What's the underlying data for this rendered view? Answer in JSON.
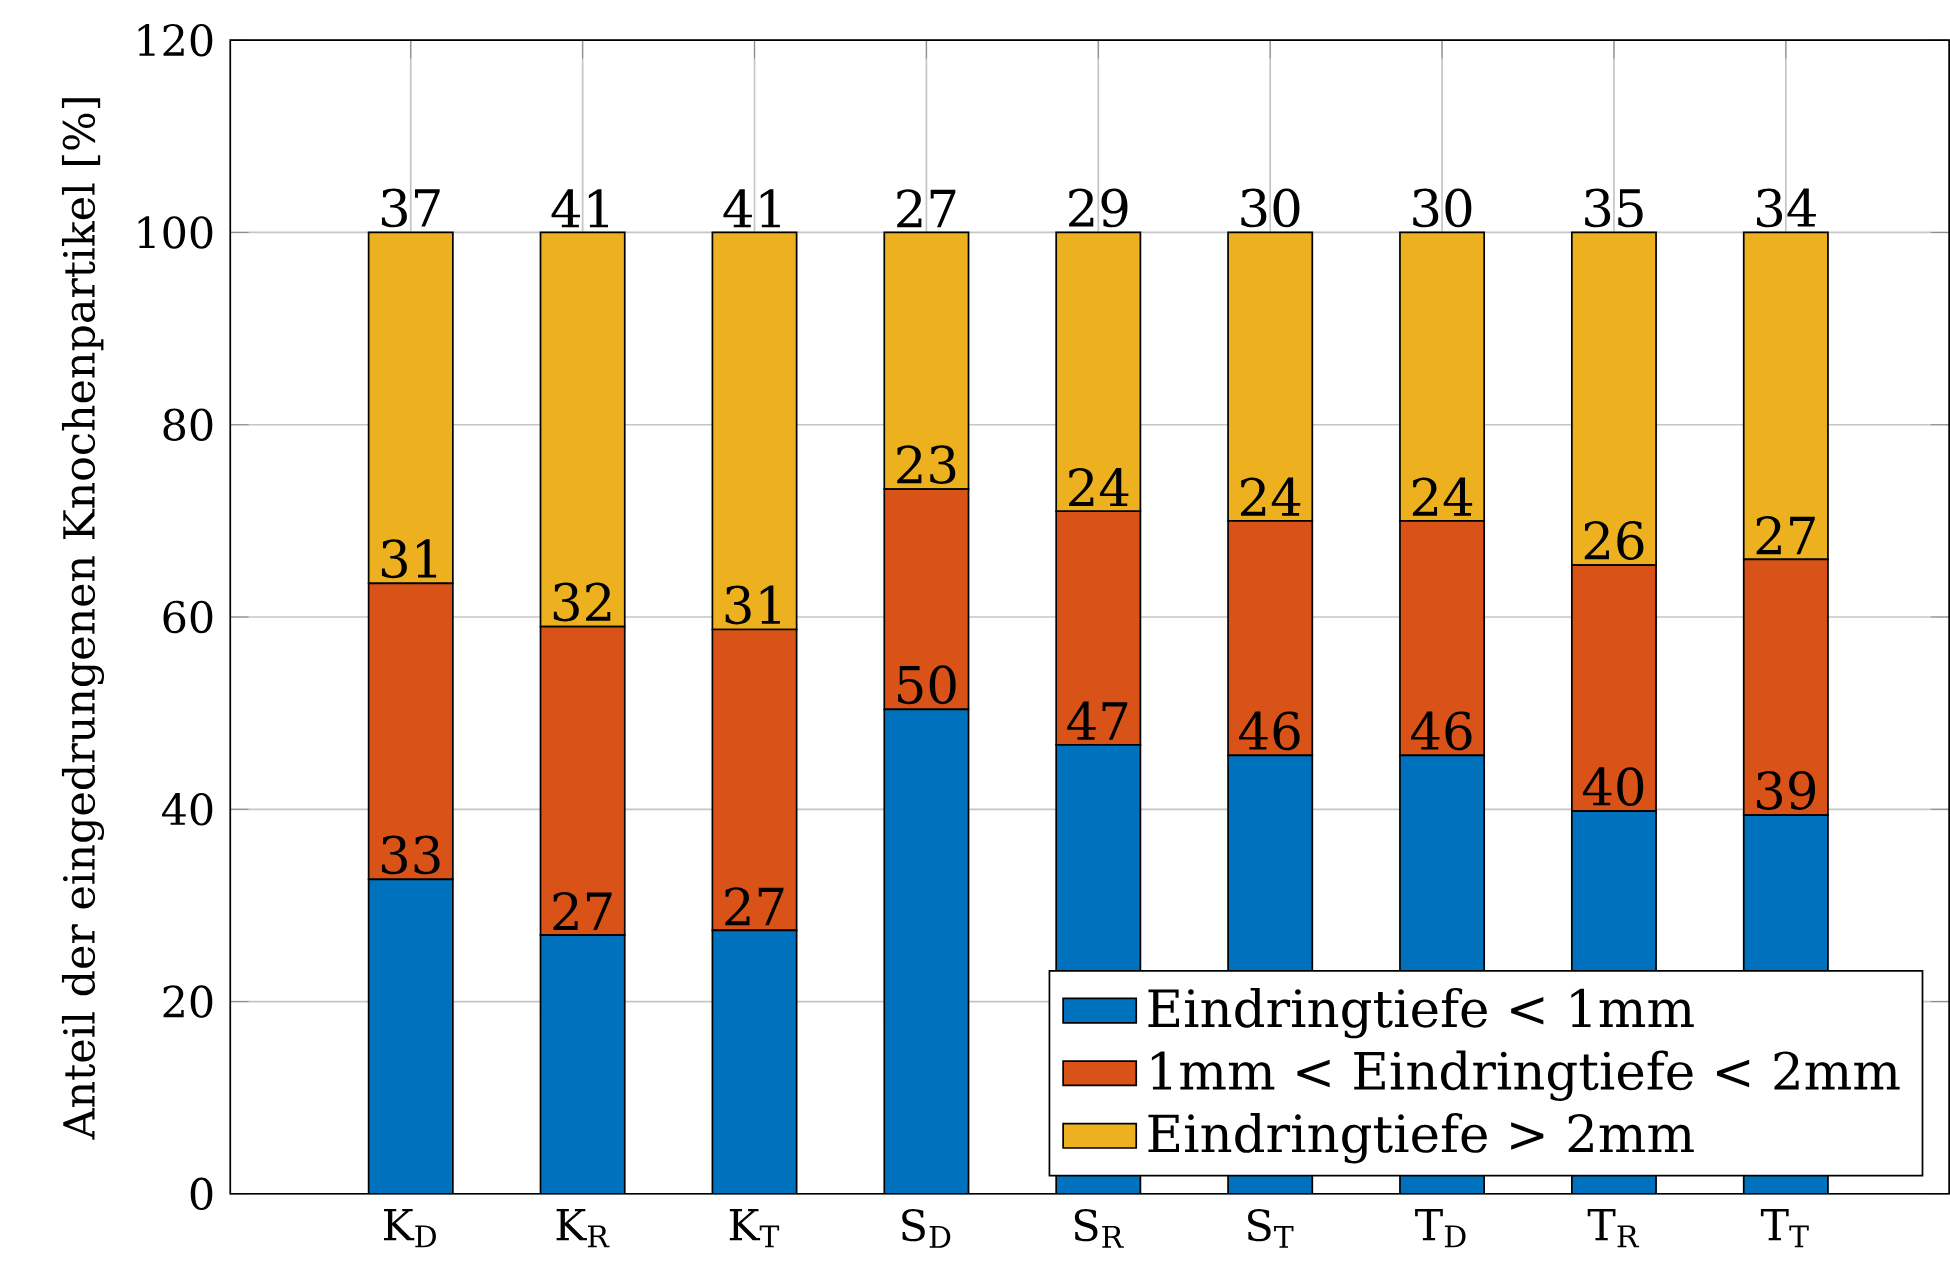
{
  "chart_data": {
    "type": "bar",
    "stacked": true,
    "ylabel": "Anteil der eingedrungenen Knochenpartikel [%]",
    "categories": [
      "K$_{D}$",
      "K$_{R}$",
      "K$_{T}$",
      "S$_{D}$",
      "S$_{R}$",
      "S$_{T}$",
      "T$_{D}$",
      "T$_{R}$",
      "T$_{T}$"
    ],
    "series": [
      {
        "name": "Eindringtiefe < 1mm",
        "color": "#0072bd",
        "values": [
          32.7,
          26.9,
          27.4,
          50.4,
          46.7,
          45.6,
          45.6,
          39.8,
          39.4
        ],
        "value_labels": [
          "33",
          "27",
          "27",
          "50",
          "47",
          "46",
          "46",
          "40",
          "39"
        ]
      },
      {
        "name": "1mm < Eindringtiefe < 2mm",
        "color": "#d95319",
        "values": [
          30.8,
          32.1,
          31.3,
          22.9,
          24.3,
          24.4,
          24.4,
          25.6,
          26.6
        ],
        "value_labels": [
          "31",
          "32",
          "31",
          "23",
          "24",
          "24",
          "24",
          "26",
          "27"
        ]
      },
      {
        "name": "Eindringtiefe > 2mm",
        "color": "#edb120",
        "values": [
          36.5,
          41.0,
          41.3,
          26.7,
          29.0,
          30.0,
          30.0,
          34.6,
          34.0
        ],
        "value_labels": [
          "37",
          "41",
          "41",
          "27",
          "29",
          "30",
          "30",
          "35",
          "34"
        ]
      }
    ],
    "ylim": [
      0,
      120
    ],
    "yticks": [
      0,
      20,
      40,
      60,
      80,
      100,
      120
    ],
    "grid": true,
    "legend": "bottom right"
  }
}
